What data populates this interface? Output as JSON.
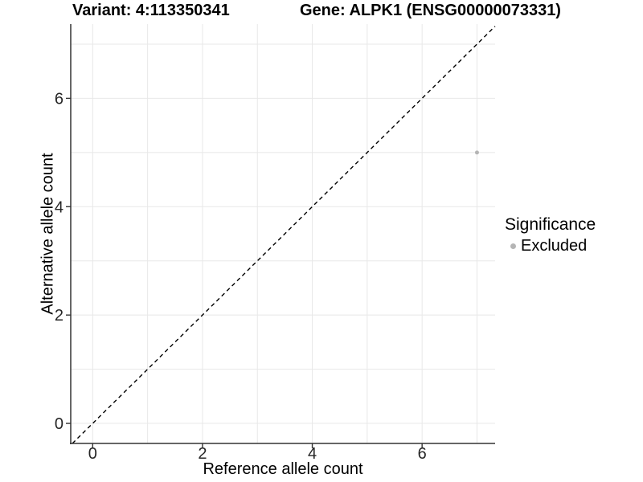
{
  "chart_data": {
    "type": "scatter",
    "titles": {
      "left": "Variant: 4:113350341",
      "right": "Gene: ALPK1 (ENSG00000073331)"
    },
    "xlabel": "Reference allele count",
    "ylabel": "Alternative allele count",
    "x_ticks": [
      0,
      2,
      4,
      6
    ],
    "y_ticks": [
      0,
      2,
      4,
      6
    ],
    "xlim": [
      -0.4,
      7.33
    ],
    "ylim": [
      -0.37,
      7.37
    ],
    "grid": {
      "show": true,
      "interval": 1,
      "color": "#e8e8e8"
    },
    "points": [
      {
        "x": 7,
        "y": 5,
        "series": "Excluded",
        "color": "#b5b5b5",
        "radius": 2.5
      }
    ],
    "reference_line": {
      "type": "identity",
      "style": "dashed",
      "color": "#000000"
    },
    "legend": {
      "title": "Significance",
      "position": "right",
      "entries": [
        {
          "label": "Excluded",
          "color": "#b5b5b5"
        }
      ]
    },
    "axis_color": "#333333",
    "tick_label_color": "#262626",
    "background": "#ffffff"
  }
}
